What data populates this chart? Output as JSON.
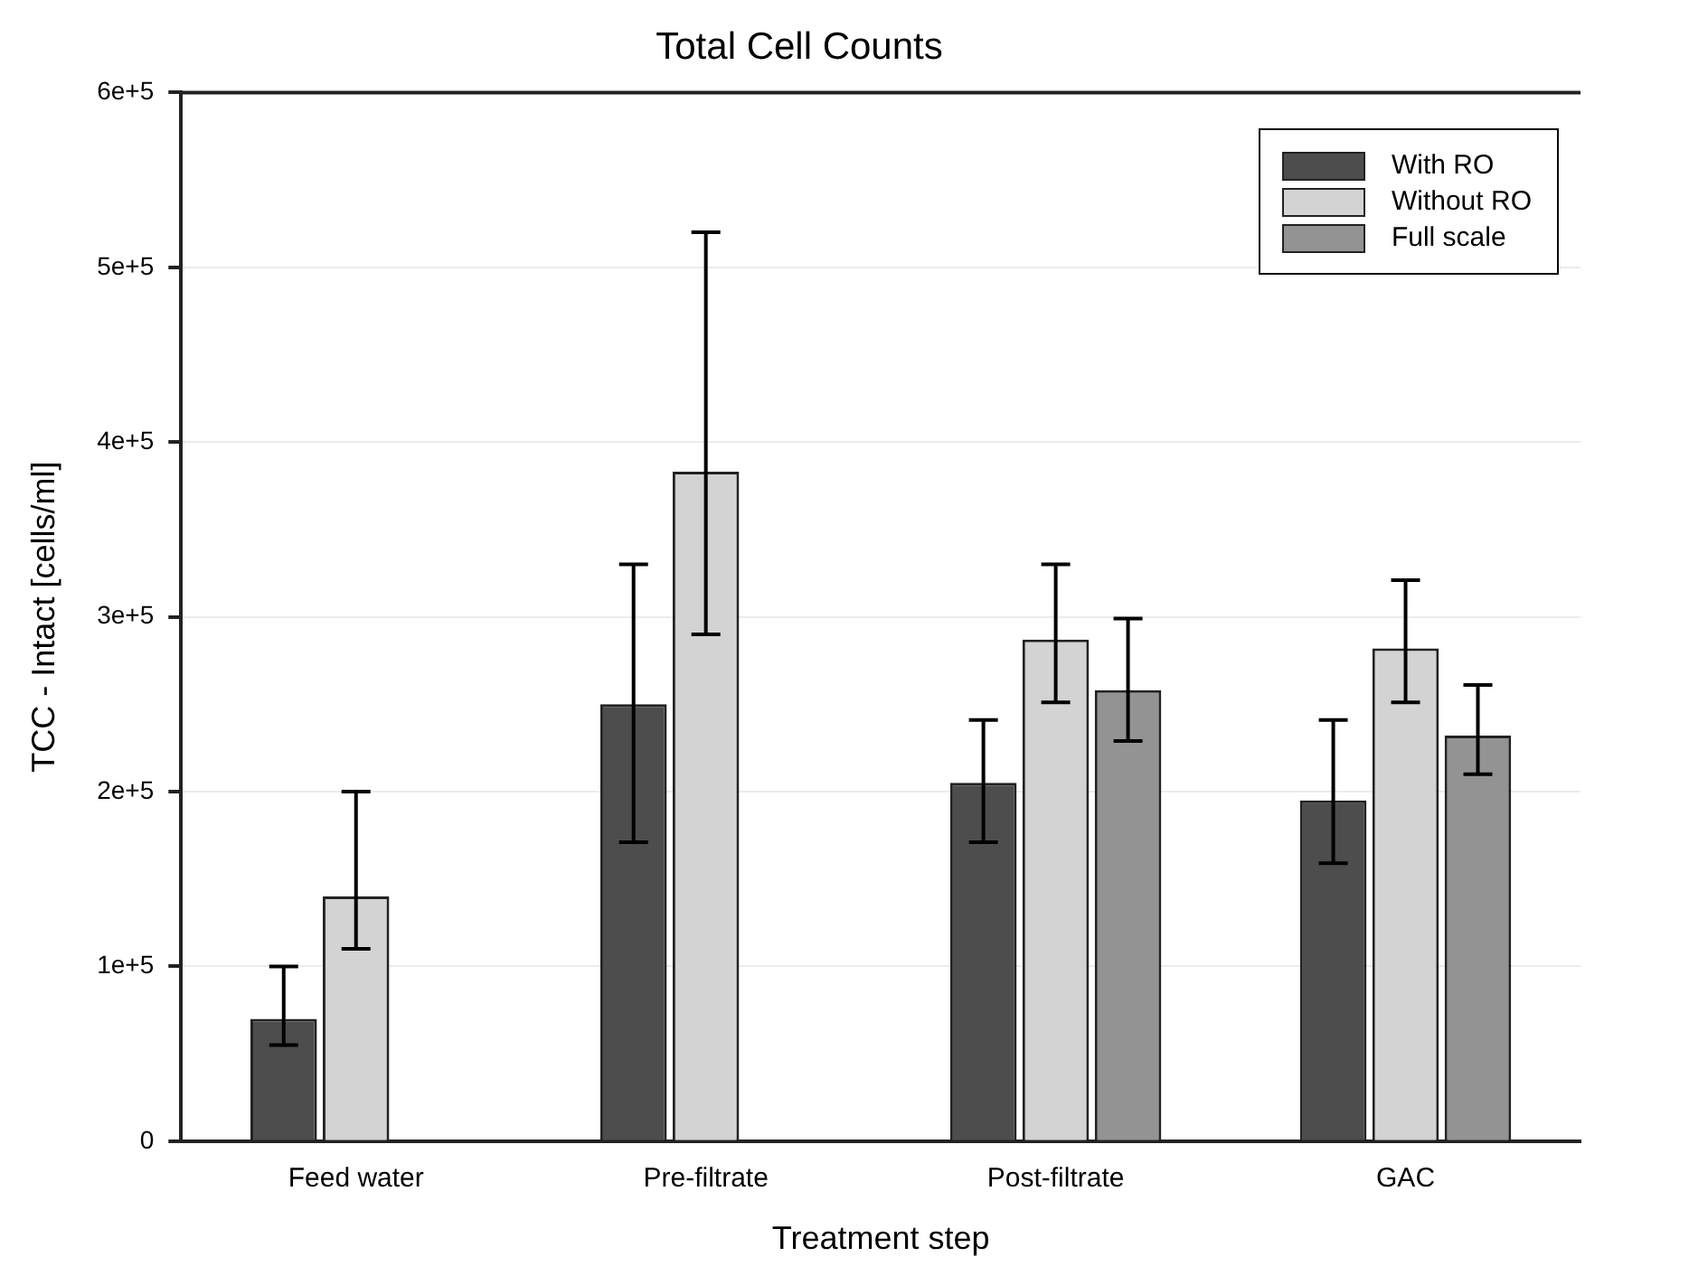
{
  "chart_data": {
    "type": "bar",
    "title": "Total Cell Counts",
    "xlabel": "Treatment step",
    "ylabel": "TCC - Intact [cells/ml]",
    "categories": [
      "Feed water",
      "Pre-filtrate",
      "Post-filtrate",
      "GAC"
    ],
    "series": [
      {
        "name": "With RO",
        "color": "#4d4d4d",
        "values": [
          70000,
          250000,
          205000,
          195000
        ],
        "errors": [
          [
            55000,
            100000
          ],
          [
            171000,
            330000
          ],
          [
            171000,
            241000
          ],
          [
            159000,
            241000
          ]
        ]
      },
      {
        "name": "Without RO",
        "color": "#d3d3d3",
        "values": [
          140000,
          383000,
          287000,
          282000
        ],
        "errors": [
          [
            110000,
            200000
          ],
          [
            290000,
            520000
          ],
          [
            251000,
            330000
          ],
          [
            251000,
            321000
          ]
        ]
      },
      {
        "name": "Full scale",
        "color": "#939393",
        "values": [
          null,
          null,
          258000,
          232000
        ],
        "errors": [
          null,
          null,
          [
            229000,
            299000
          ],
          [
            210000,
            261000
          ]
        ]
      }
    ],
    "ylim": [
      0,
      600000
    ],
    "yticks": [
      0,
      {
        "value": 100000,
        "label": "1e+5"
      },
      {
        "value": 200000,
        "label": "2e+5"
      },
      {
        "value": 300000,
        "label": "3e+5"
      },
      {
        "value": 400000,
        "label": "4e+5"
      },
      {
        "value": 500000,
        "label": "5e+5"
      },
      {
        "value": 600000,
        "label": "6e+5"
      }
    ],
    "grid": "y",
    "legend": "top right"
  }
}
